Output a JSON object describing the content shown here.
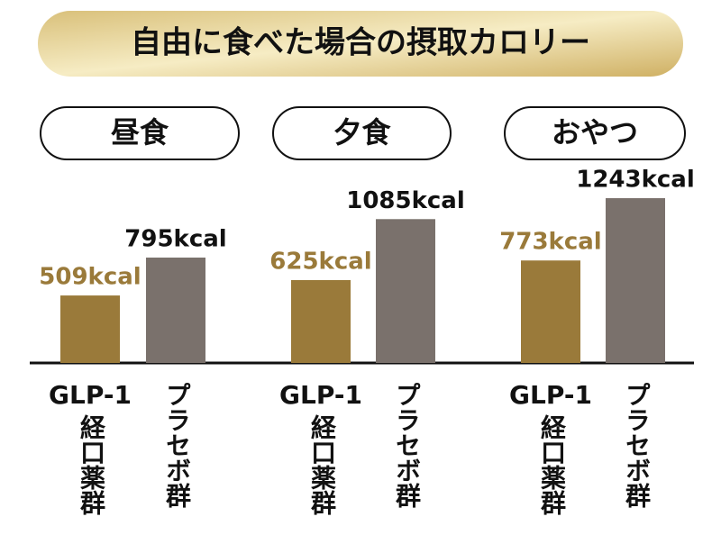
{
  "header": {
    "title": "自由に食べた場合の摂取カロリー"
  },
  "groups": [
    {
      "prefix": "GLP-1",
      "label": "経口薬群",
      "color": "#9a7a3a"
    },
    {
      "label": "プラセボ群",
      "color": "#7a716c"
    }
  ],
  "chart_data": [
    {
      "type": "bar",
      "title": "昼食",
      "values": [
        509,
        795
      ],
      "value_labels": [
        "509kcal",
        "795kcal"
      ]
    },
    {
      "type": "bar",
      "title": "夕食",
      "values": [
        625,
        1085
      ],
      "value_labels": [
        "625kcal",
        "1085kcal"
      ]
    },
    {
      "type": "bar",
      "title": "おやつ",
      "values": [
        773,
        1243
      ],
      "value_labels": [
        "773kcal",
        "1243kcal"
      ]
    }
  ]
}
